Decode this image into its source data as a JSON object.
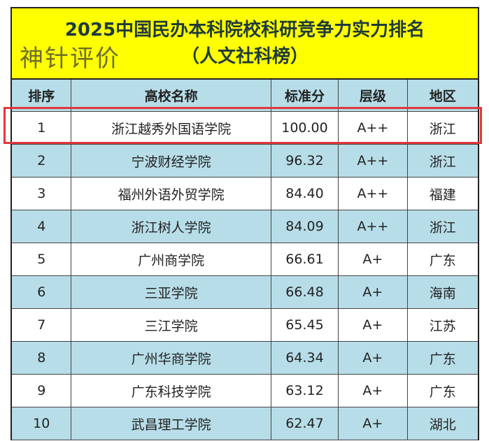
{
  "title": "2025中国民办本科院校科研竞争力实力排名",
  "subtitle": "（人文社科榜）",
  "watermark": "神针评价",
  "colors": {
    "title_bg": "#ffff00",
    "header_bg": "#b7dde8",
    "alt_row_bg": "#b7dde8",
    "highlight": "#e0383c"
  },
  "columns": [
    "排序",
    "高校名称",
    "标准分",
    "层级",
    "地区"
  ],
  "rows": [
    {
      "rank": "1",
      "name": "浙江越秀外国语学院",
      "score": "100.00",
      "level": "A++",
      "region": "浙江"
    },
    {
      "rank": "2",
      "name": "宁波财经学院",
      "score": "96.32",
      "level": "A++",
      "region": "浙江"
    },
    {
      "rank": "3",
      "name": "福州外语外贸学院",
      "score": "84.40",
      "level": "A++",
      "region": "福建"
    },
    {
      "rank": "4",
      "name": "浙江树人学院",
      "score": "84.09",
      "level": "A++",
      "region": "浙江"
    },
    {
      "rank": "5",
      "name": "广州商学院",
      "score": "66.61",
      "level": "A+",
      "region": "广东"
    },
    {
      "rank": "6",
      "name": "三亚学院",
      "score": "66.48",
      "level": "A+",
      "region": "海南"
    },
    {
      "rank": "7",
      "name": "三江学院",
      "score": "65.45",
      "level": "A+",
      "region": "江苏"
    },
    {
      "rank": "8",
      "name": "广州华商学院",
      "score": "64.34",
      "level": "A+",
      "region": "广东"
    },
    {
      "rank": "9",
      "name": "广东科技学院",
      "score": "63.12",
      "level": "A+",
      "region": "广东"
    },
    {
      "rank": "10",
      "name": "武昌理工学院",
      "score": "62.47",
      "level": "A+",
      "region": "湖北"
    }
  ]
}
